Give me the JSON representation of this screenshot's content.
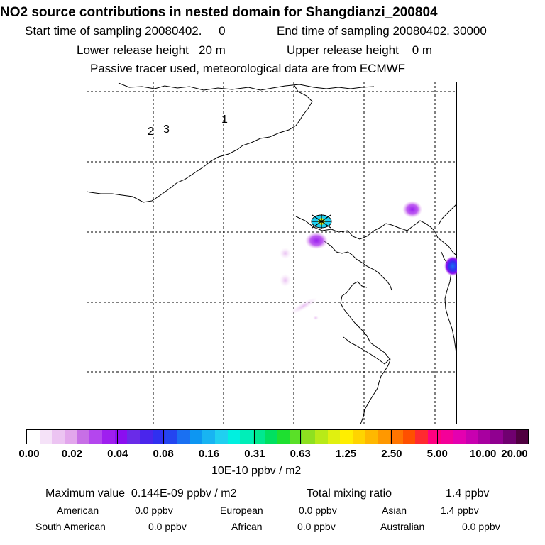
{
  "header": {
    "title": "NO2 source contributions in nested domain for Shangdianzi_200804",
    "start_time": "Start time of sampling 20080402.     0",
    "end_time": "End time of sampling 20080402. 30000",
    "lower_height": "Lower release height   20 m",
    "upper_height": "Upper release height    0 m",
    "tracer_note": "Passive tracer used, meteorological data are from ECMWF"
  },
  "map": {
    "site_labels": [
      "1",
      "2",
      "3"
    ]
  },
  "colorbar": {
    "colors": [
      "#ffffff",
      "#f5e2f8",
      "#ecc4f2",
      "#e2a6ec",
      "#c76fe6",
      "#b446ee",
      "#9f1fef",
      "#8b0ef0",
      "#6a2be8",
      "#4a25ec",
      "#3030f0",
      "#2445f0",
      "#1a70f2",
      "#0d96f2",
      "#18b4f2",
      "#20d0f0",
      "#00f0e0",
      "#00eeb8",
      "#00e890",
      "#00e060",
      "#1ee030",
      "#5ae028",
      "#8ee020",
      "#b8ea18",
      "#e0f010",
      "#ffee00",
      "#ffd400",
      "#ffb800",
      "#ff9800",
      "#ff7400",
      "#ff5000",
      "#ff2a30",
      "#ff0080",
      "#f40098",
      "#e400b0",
      "#c800b0",
      "#a800a0",
      "#900090",
      "#700070",
      "#500040"
    ],
    "tick_labels": [
      "0.00",
      "0.02",
      "0.04",
      "0.08",
      "0.16",
      "0.31",
      "0.63",
      "1.25",
      "2.50",
      "5.00",
      "10.00",
      "20.00"
    ],
    "units": "10E-10 ppbv / m2"
  },
  "stats": {
    "max_value": "Maximum value  0.144E-09 ppbv / m2",
    "total_mixing": "Total mixing ratio",
    "total_mixing_value": "1.4 ppbv",
    "american": "American",
    "american_value": "0.0 ppbv",
    "european": "European",
    "european_value": "0.0 ppbv",
    "asian": "Asian",
    "asian_value": "1.4 ppbv",
    "south_american": "South American",
    "south_american_value": "0.0 ppbv",
    "african": "African",
    "african_value": "0.0 ppbv",
    "australian": "Australian",
    "australian_value": "0.0 ppbv"
  }
}
